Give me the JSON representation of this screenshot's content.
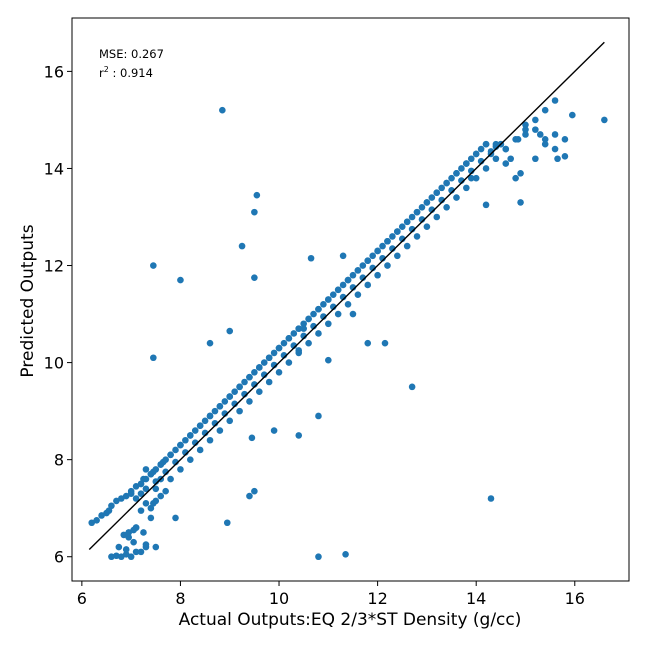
{
  "chart_data": {
    "type": "scatter",
    "title": "",
    "xlabel": "Actual Outputs:EQ 2/3*ST Density (g/cc)",
    "ylabel": "Predicted Outputs",
    "xlim": [
      5.8,
      17.1
    ],
    "ylim": [
      5.5,
      17.1
    ],
    "xticks": [
      6,
      8,
      10,
      12,
      14,
      16
    ],
    "yticks": [
      6,
      8,
      10,
      12,
      14,
      16
    ],
    "grid": false,
    "point_color": "#1f77b4",
    "line_color": "#000000",
    "reference_line": {
      "x": [
        6.15,
        16.6
      ],
      "y": [
        6.15,
        16.6
      ]
    },
    "annotations": {
      "mse_label": "MSE: 0.267",
      "r2_label_base": "r",
      "r2_label_sup": "2",
      "r2_label_value": " : 0.914"
    },
    "series": [
      {
        "values_note": "",
        "x": [
          6.6,
          6.7,
          6.8,
          6.9,
          7.0,
          7.1,
          6.75,
          6.9,
          7.05,
          7.2,
          7.3,
          7.25,
          7.1,
          7.4,
          6.95,
          6.85,
          7.2,
          7.3,
          7.5,
          7.2,
          7.6,
          7.4,
          7.5,
          7.7,
          7.25,
          7.6,
          7.45,
          7.65,
          7.3,
          6.3,
          6.2,
          6.4,
          6.5,
          6.55,
          6.6,
          6.7,
          6.8,
          6.9,
          7.0,
          7.1,
          7.2,
          7.3,
          7.4,
          7.5,
          7.6,
          7.7,
          7.8,
          7.9,
          8.0,
          8.1,
          8.2,
          8.3,
          8.4,
          8.5,
          8.6,
          8.7,
          8.8,
          8.9,
          9.0,
          9.1,
          9.2,
          9.3,
          9.4,
          9.5,
          9.6,
          9.7,
          9.8,
          9.9,
          10.0,
          10.1,
          10.2,
          10.3,
          10.4,
          10.5,
          10.6,
          10.7,
          10.8,
          10.9,
          11.0,
          11.1,
          11.2,
          11.3,
          11.4,
          11.5,
          11.6,
          11.7,
          11.8,
          11.9,
          12.0,
          12.1,
          12.2,
          12.3,
          12.4,
          12.5,
          12.6,
          12.7,
          12.8,
          12.9,
          13.0,
          13.1,
          13.2,
          13.3,
          13.4,
          13.5,
          13.6,
          13.7,
          13.8,
          13.9,
          14.0,
          14.1,
          14.2,
          14.3,
          14.4,
          14.5,
          14.6,
          14.7,
          14.8,
          14.9,
          15.0,
          15.2,
          15.4,
          15.6,
          15.95,
          16.6,
          7.0,
          7.2,
          7.4,
          7.6,
          7.8,
          8.0,
          8.2,
          8.4,
          8.6,
          8.8,
          9.0,
          9.2,
          9.4,
          9.6,
          9.8,
          10.0,
          10.2,
          10.4,
          10.6,
          10.8,
          11.0,
          11.2,
          11.4,
          11.6,
          11.8,
          12.0,
          12.2,
          12.4,
          12.6,
          12.8,
          13.0,
          13.2,
          13.4,
          13.6,
          13.8,
          14.0,
          14.2,
          14.4,
          7.1,
          7.3,
          7.5,
          7.7,
          7.9,
          8.1,
          8.3,
          8.5,
          8.7,
          8.9,
          9.1,
          9.3,
          9.5,
          9.7,
          9.9,
          10.1,
          10.3,
          10.5,
          10.7,
          10.9,
          11.1,
          11.3,
          11.5,
          11.7,
          11.9,
          12.1,
          12.3,
          12.5,
          12.7,
          12.9,
          13.1,
          13.3,
          13.5,
          13.7,
          13.9,
          14.1,
          14.3,
          7.8,
          8.0,
          8.2,
          8.4,
          8.6,
          8.8,
          9.0,
          9.2,
          9.4,
          9.6,
          9.8,
          10.0,
          10.2,
          10.4,
          10.6,
          10.8,
          11.0,
          11.2,
          11.4,
          11.6,
          11.8,
          12.0,
          12.2,
          12.4,
          12.6,
          12.8,
          13.0,
          13.2,
          13.4,
          13.6,
          13.8,
          14.0,
          14.2,
          14.4,
          14.6,
          14.8,
          15.0,
          15.2,
          15.4,
          15.6,
          8.85,
          7.45,
          8.0,
          9.5,
          9.55,
          9.25,
          9.5,
          10.65,
          8.6,
          7.45,
          9.0,
          10.4,
          10.5,
          11.3,
          11.5,
          11.8,
          12.15,
          12.7,
          14.3,
          11.0,
          10.8,
          9.9,
          10.4,
          9.5,
          9.4,
          9.45,
          8.95,
          7.45,
          7.9,
          7.5,
          7.3,
          7.1,
          7.05,
          6.95,
          11.35,
          10.8,
          14.5,
          14.6,
          14.85,
          15.0,
          15.3,
          15.2,
          15.4,
          15.6,
          15.65,
          15.8,
          15.8,
          14.2,
          14.9,
          13.9
        ],
        "y": [
          6.0,
          6.02,
          6.0,
          6.05,
          6.0,
          6.1,
          6.2,
          6.15,
          6.3,
          6.1,
          6.2,
          6.5,
          6.6,
          6.8,
          6.5,
          6.45,
          6.95,
          7.1,
          7.15,
          7.3,
          7.25,
          7.0,
          7.4,
          7.35,
          7.6,
          7.6,
          7.75,
          7.95,
          7.8,
          6.75,
          6.7,
          6.85,
          6.9,
          6.95,
          7.05,
          7.15,
          7.2,
          7.25,
          7.35,
          7.45,
          7.5,
          7.6,
          7.7,
          7.8,
          7.9,
          8.0,
          8.1,
          8.2,
          8.3,
          8.4,
          8.5,
          8.6,
          8.7,
          8.8,
          8.9,
          9.0,
          9.1,
          9.2,
          9.3,
          9.4,
          9.5,
          9.6,
          9.7,
          9.8,
          9.9,
          10.0,
          10.1,
          10.2,
          10.3,
          10.4,
          10.5,
          10.6,
          10.7,
          10.8,
          10.9,
          11.0,
          11.1,
          11.2,
          11.3,
          11.4,
          11.5,
          11.6,
          11.7,
          11.8,
          11.9,
          12.0,
          12.1,
          12.2,
          12.3,
          12.4,
          12.5,
          12.6,
          12.7,
          12.8,
          12.9,
          13.0,
          13.1,
          13.2,
          13.3,
          13.4,
          13.5,
          13.6,
          13.7,
          13.8,
          13.9,
          14.0,
          14.1,
          14.2,
          14.3,
          14.4,
          14.5,
          14.3,
          14.45,
          14.5,
          14.1,
          14.2,
          13.8,
          13.9,
          14.7,
          14.8,
          14.6,
          14.7,
          15.1,
          15.0,
          7.3,
          7.5,
          7.7,
          7.9,
          8.1,
          8.3,
          8.5,
          8.7,
          8.9,
          9.1,
          9.3,
          9.5,
          9.7,
          9.9,
          10.1,
          10.3,
          10.5,
          10.7,
          10.9,
          11.1,
          11.3,
          11.5,
          11.7,
          11.9,
          12.1,
          12.3,
          12.5,
          12.7,
          12.9,
          13.1,
          13.3,
          13.5,
          13.7,
          13.9,
          14.1,
          14.3,
          14.5,
          14.5,
          7.2,
          7.4,
          7.55,
          7.75,
          7.95,
          8.15,
          8.35,
          8.55,
          8.75,
          8.95,
          9.15,
          9.35,
          9.55,
          9.75,
          9.95,
          10.15,
          10.35,
          10.55,
          10.75,
          10.95,
          11.15,
          11.35,
          11.55,
          11.75,
          11.95,
          12.15,
          12.35,
          12.55,
          12.75,
          12.95,
          13.15,
          13.35,
          13.55,
          13.75,
          13.95,
          14.15,
          14.35,
          7.6,
          7.8,
          8.0,
          8.2,
          8.4,
          8.6,
          8.8,
          9.0,
          9.2,
          9.4,
          9.6,
          9.8,
          10.0,
          10.2,
          10.4,
          10.6,
          10.8,
          11.0,
          11.2,
          11.4,
          11.6,
          11.8,
          12.0,
          12.2,
          12.4,
          12.6,
          12.8,
          13.0,
          13.2,
          13.4,
          13.6,
          13.8,
          14.0,
          14.2,
          14.4,
          14.6,
          14.8,
          15.0,
          15.2,
          15.4,
          15.2,
          12.0,
          11.7,
          13.1,
          13.45,
          12.4,
          11.75,
          12.15,
          10.4,
          10.1,
          10.65,
          10.25,
          10.7,
          12.2,
          11.0,
          10.4,
          10.4,
          9.5,
          7.2,
          10.05,
          8.9,
          8.6,
          8.5,
          7.35,
          7.25,
          8.45,
          6.7,
          7.1,
          6.8,
          6.2,
          6.25,
          6.6,
          6.55,
          6.4,
          6.05,
          6.0,
          14.5,
          14.4,
          14.6,
          14.9,
          14.7,
          14.2,
          14.5,
          14.4,
          14.2,
          14.25,
          14.6,
          13.25,
          13.3,
          13.8
        ]
      }
    ]
  }
}
